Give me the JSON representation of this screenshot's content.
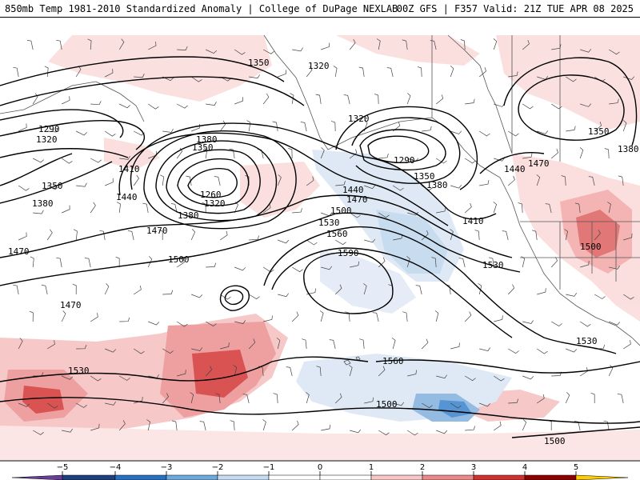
{
  "header": {
    "left_title": "850mb Temp 1981-2010 Standardized Anomaly | College of DuPage NEXLAB",
    "right_title": "00Z GFS | F357 Valid: 21Z TUE APR 08 2025"
  },
  "contour_labels": [
    "1350",
    "1320",
    "1290",
    "1320",
    "1380",
    "1350",
    "1410",
    "1350",
    "1380",
    "1440",
    "1260",
    "1320",
    "1380",
    "1470",
    "1470",
    "1500",
    "1470",
    "1320",
    "1290",
    "1350",
    "1380",
    "1440",
    "1470",
    "1500",
    "1530",
    "1560",
    "1590",
    "1410",
    "1530",
    "1560",
    "1530",
    "1500",
    "1440",
    "1470",
    "1350",
    "1380",
    "1500",
    "1530"
  ],
  "colorbar": {
    "ticks": [
      "−5",
      "−4",
      "−3",
      "−2",
      "−1",
      "0",
      "1",
      "2",
      "3",
      "4",
      "5"
    ],
    "colors": {
      "lt5": "#6a3d9a",
      "neg5_4": "#1f3f7f",
      "neg4_3": "#2a6fbf",
      "neg3_2": "#6fa8dc",
      "neg2_1": "#c6dbef",
      "neg1_0": "#ffffff",
      "pos0_1": "#ffffff",
      "pos1_2": "#f7c6c6",
      "pos2_3": "#e88a8a",
      "pos3_4": "#cc3333",
      "pos4_5": "#8b0000",
      "gt5": "#ffcc00"
    }
  }
}
